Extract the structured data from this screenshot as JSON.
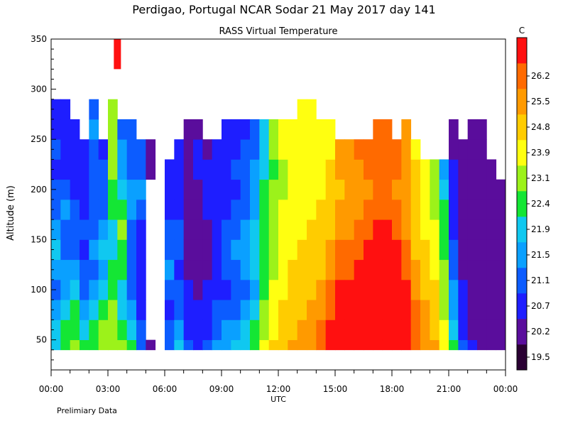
{
  "chart_data": {
    "type": "heatmap",
    "title": "Perdigao, Portugal  NCAR Sodar  21 May 2017  day 141",
    "subtitle": "RASS Virtual Temperature",
    "xlabel": "UTC",
    "ylabel": "Altitude (m)",
    "footnote": "Prelimiary Data",
    "colorbar_unit": "C",
    "x_ticks": [
      "00:00",
      "03:00",
      "06:00",
      "09:00",
      "12:00",
      "15:00",
      "18:00",
      "21:00",
      "00:00"
    ],
    "x_range_hours": [
      0,
      24
    ],
    "y_ticks": [
      50,
      100,
      150,
      200,
      250,
      300,
      350
    ],
    "ylim": [
      20,
      350
    ],
    "colorbar_ticks": [
      "19.5",
      "20.2",
      "20.7",
      "21.1",
      "21.5",
      "21.9",
      "22.4",
      "23.1",
      "23.9",
      "24.8",
      "25.5",
      "26.2"
    ],
    "colorbar_colors": [
      "#2a0033",
      "#5a0d9c",
      "#1e1eff",
      "#0c5cff",
      "#0aa0ff",
      "#10c8f0",
      "#14e634",
      "#9cf21a",
      "#ffff10",
      "#ffcc00",
      "#ff9a00",
      "#ff6a00",
      "#ff1010"
    ],
    "altitude_levels": [
      40,
      60,
      80,
      100,
      120,
      140,
      160,
      180,
      200,
      220,
      240,
      260,
      280
    ],
    "profile_times_hours": [
      0,
      0.5,
      1,
      1.5,
      2,
      2.5,
      3,
      3.5,
      4,
      4.5,
      5,
      5.5,
      6,
      6.5,
      7,
      7.5,
      8,
      8.5,
      9,
      9.5,
      10,
      10.5,
      11,
      11.5,
      12,
      12.5,
      13,
      13.5,
      14,
      14.5,
      15,
      15.5,
      16,
      16.5,
      17,
      17.5,
      18,
      18.5,
      19,
      19.5,
      20,
      20.5,
      21,
      21.5,
      22,
      22.5,
      23,
      23.5
    ],
    "profile_tops_m": [
      280,
      280,
      260,
      250,
      300,
      240,
      280,
      280,
      260,
      240,
      240,
      220,
      200,
      220,
      260,
      260,
      240,
      220,
      240,
      240,
      240,
      260,
      260,
      280,
      280,
      280,
      300,
      280,
      260,
      260,
      240,
      220,
      220,
      220,
      260,
      240,
      220,
      260,
      240,
      220,
      200,
      200,
      260,
      240,
      260,
      260,
      200,
      180
    ],
    "temperature_profiles_c": [
      [
        21.8,
        21.6,
        21.2,
        20.9,
        21.3,
        21.6,
        21.1,
        20.8,
        21.0,
        20.6,
        20.7,
        20.5,
        20.4
      ],
      [
        22.3,
        22.0,
        21.6,
        21.2,
        21.4,
        20.9,
        20.8,
        21.1,
        20.7,
        20.5,
        20.4,
        20.3,
        20.2
      ],
      [
        22.5,
        22.2,
        21.9,
        21.5,
        21.2,
        20.8,
        21.0,
        20.7,
        20.6,
        20.4,
        20.3,
        20.2,
        null
      ],
      [
        22.1,
        21.7,
        21.3,
        21.0,
        20.8,
        20.6,
        20.8,
        20.5,
        20.4,
        20.3,
        20.2,
        null,
        null
      ],
      [
        22.0,
        22.3,
        21.8,
        21.4,
        21.0,
        21.2,
        20.9,
        20.7,
        20.9,
        20.8,
        21.0,
        21.1,
        21.0
      ],
      [
        22.6,
        22.4,
        22.0,
        21.6,
        21.3,
        21.5,
        21.1,
        20.8,
        20.9,
        20.7,
        20.6,
        null,
        null
      ],
      [
        22.8,
        22.6,
        22.4,
        22.1,
        21.9,
        21.6,
        21.8,
        22.0,
        22.3,
        22.5,
        22.6,
        22.5,
        22.4
      ],
      [
        22.4,
        22.0,
        21.7,
        21.5,
        21.9,
        22.2,
        22.4,
        22.0,
        21.6,
        21.4,
        21.1,
        21.0,
        null
      ],
      [
        21.9,
        21.5,
        21.2,
        20.9,
        20.7,
        20.8,
        21.0,
        21.3,
        21.1,
        20.9,
        20.8,
        20.7,
        null
      ],
      [
        21.0,
        20.8,
        20.5,
        20.3,
        20.2,
        20.4,
        20.6,
        20.9,
        21.1,
        21.0,
        20.8,
        null,
        null
      ],
      [
        19.9,
        null,
        null,
        null,
        null,
        null,
        null,
        null,
        null,
        19.8,
        19.9,
        null,
        null
      ],
      [
        null,
        null,
        null,
        null,
        null,
        null,
        null,
        null,
        null,
        null,
        null,
        null,
        null
      ],
      [
        21.0,
        20.7,
        20.4,
        20.8,
        21.2,
        21.0,
        20.7,
        20.5,
        20.3,
        20.5,
        null,
        null,
        null
      ],
      [
        21.6,
        21.3,
        21.0,
        20.8,
        20.6,
        20.9,
        20.7,
        20.5,
        20.4,
        20.3,
        20.4,
        null,
        null
      ],
      [
        20.9,
        20.6,
        20.4,
        20.2,
        20.0,
        19.9,
        19.8,
        19.9,
        20.0,
        19.8,
        19.7,
        19.9,
        null
      ],
      [
        20.6,
        20.4,
        20.2,
        20.0,
        19.8,
        19.7,
        19.8,
        19.9,
        20.1,
        20.3,
        20.2,
        19.9,
        null
      ],
      [
        20.8,
        20.5,
        20.3,
        20.2,
        20.0,
        19.9,
        20.1,
        20.3,
        20.4,
        20.2,
        20.1,
        null,
        null
      ],
      [
        21.2,
        20.9,
        20.7,
        20.5,
        20.3,
        20.2,
        20.4,
        20.6,
        20.3,
        20.2,
        20.3,
        null,
        null
      ],
      [
        21.4,
        21.1,
        20.8,
        20.6,
        20.8,
        21.0,
        20.7,
        20.5,
        20.4,
        20.6,
        20.5,
        20.4,
        null
      ],
      [
        21.6,
        21.3,
        21.0,
        20.8,
        20.9,
        21.1,
        20.9,
        20.7,
        20.6,
        20.7,
        20.6,
        20.5,
        null
      ],
      [
        21.7,
        21.5,
        21.2,
        21.0,
        21.1,
        21.3,
        21.2,
        21.0,
        20.9,
        20.8,
        20.7,
        20.6,
        null
      ],
      [
        22.1,
        21.9,
        21.6,
        21.4,
        21.5,
        21.7,
        21.6,
        21.4,
        21.2,
        21.1,
        21.0,
        20.9,
        null
      ],
      [
        23.2,
        23.0,
        22.6,
        22.3,
        22.1,
        21.9,
        22.0,
        22.2,
        22.1,
        21.8,
        21.6,
        21.5,
        null
      ],
      [
        24.1,
        23.8,
        23.5,
        23.2,
        23.0,
        22.8,
        22.6,
        22.5,
        22.4,
        22.3,
        22.4,
        22.5,
        null
      ],
      [
        24.5,
        24.3,
        24.0,
        23.8,
        23.6,
        23.4,
        23.2,
        23.1,
        23.0,
        22.9,
        23.1,
        23.2,
        null
      ],
      [
        24.9,
        24.7,
        24.4,
        24.1,
        23.9,
        23.7,
        23.5,
        23.4,
        23.3,
        23.2,
        23.2,
        23.3,
        null
      ],
      [
        25.2,
        25.0,
        24.7,
        24.4,
        24.2,
        24.0,
        23.8,
        23.6,
        23.5,
        23.3,
        23.2,
        23.2,
        23.2
      ],
      [
        25.4,
        25.1,
        24.9,
        24.6,
        24.4,
        24.2,
        24.0,
        23.8,
        23.6,
        23.4,
        23.3,
        23.3,
        23.2
      ],
      [
        25.8,
        25.6,
        25.3,
        25.0,
        24.7,
        24.5,
        24.2,
        24.0,
        23.8,
        23.5,
        23.3,
        23.2,
        null
      ],
      [
        26.3,
        26.2,
        25.9,
        25.6,
        25.3,
        25.0,
        24.7,
        24.4,
        24.1,
        23.9,
        23.6,
        23.4,
        null
      ],
      [
        26.6,
        26.5,
        26.3,
        26.2,
        25.8,
        25.5,
        25.2,
        24.9,
        24.6,
        24.8,
        24.9,
        null,
        null
      ],
      [
        26.7,
        26.6,
        26.4,
        26.3,
        26.0,
        25.7,
        25.4,
        25.1,
        24.9,
        25.0,
        25.2,
        null,
        null
      ],
      [
        26.8,
        26.7,
        26.5,
        26.4,
        26.3,
        26.0,
        25.7,
        25.4,
        25.2,
        25.4,
        25.5,
        null,
        null
      ],
      [
        26.9,
        26.8,
        26.6,
        26.5,
        26.4,
        26.3,
        25.9,
        25.6,
        25.4,
        25.5,
        25.6,
        null,
        null
      ],
      [
        27.0,
        26.9,
        26.7,
        26.6,
        26.5,
        26.4,
        26.2,
        25.8,
        25.6,
        25.7,
        25.8,
        25.8,
        null
      ],
      [
        27.0,
        26.9,
        26.8,
        26.7,
        26.6,
        26.5,
        26.3,
        26.0,
        25.7,
        25.8,
        25.9,
        26.0,
        null
      ],
      [
        26.9,
        26.8,
        26.6,
        26.5,
        26.4,
        26.2,
        25.9,
        25.6,
        25.4,
        25.5,
        25.6,
        null,
        null
      ],
      [
        26.6,
        26.5,
        26.3,
        26.2,
        25.9,
        25.6,
        25.3,
        25.0,
        24.8,
        24.9,
        25.1,
        25.2,
        null
      ],
      [
        26.0,
        25.8,
        25.5,
        25.2,
        24.9,
        24.6,
        24.4,
        24.2,
        24.0,
        23.9,
        23.8,
        null,
        null
      ],
      [
        25.4,
        25.2,
        24.9,
        24.6,
        24.3,
        24.0,
        23.8,
        23.6,
        23.4,
        23.2,
        null,
        null,
        null
      ],
      [
        24.8,
        24.5,
        24.2,
        23.9,
        23.6,
        23.4,
        23.2,
        23.0,
        22.8,
        22.6,
        null,
        null,
        null
      ],
      [
        23.6,
        23.3,
        23.0,
        22.7,
        22.5,
        22.3,
        22.1,
        21.9,
        21.6,
        21.4,
        null,
        null,
        null
      ],
      [
        21.9,
        21.6,
        21.4,
        21.2,
        21.0,
        20.8,
        20.6,
        20.4,
        20.3,
        20.2,
        20.1,
        20.0,
        null
      ],
      [
        20.8,
        20.6,
        20.4,
        20.2,
        20.1,
        20.0,
        19.9,
        19.8,
        19.8,
        19.7,
        19.7,
        null,
        null
      ],
      [
        20.3,
        20.1,
        20.0,
        19.9,
        19.8,
        19.8,
        19.7,
        19.7,
        19.6,
        19.6,
        19.6,
        19.6,
        null
      ],
      [
        19.9,
        19.8,
        19.7,
        19.7,
        19.6,
        19.6,
        19.6,
        19.5,
        19.5,
        19.5,
        19.5,
        19.5,
        null
      ],
      [
        19.8,
        19.7,
        19.6,
        19.6,
        19.5,
        19.5,
        19.5,
        19.5,
        19.5,
        19.5,
        null,
        null,
        null
      ],
      [
        19.7,
        19.6,
        19.6,
        19.5,
        19.5,
        19.5,
        19.5,
        19.5,
        19.5,
        null,
        null,
        null,
        null
      ]
    ],
    "top_patch": {
      "time_hours": 3.5,
      "altitude_range_m": [
        320,
        350
      ],
      "temperature_c": 26.5
    }
  }
}
